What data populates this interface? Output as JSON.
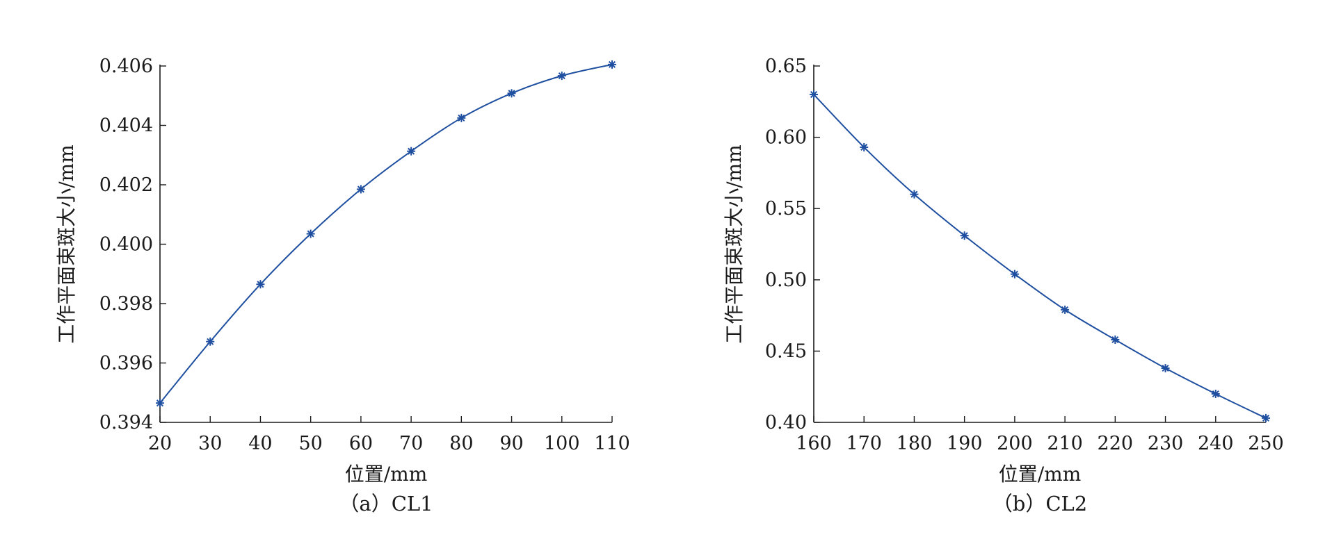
{
  "colors": {
    "series": "#1f4fa0",
    "axis": "#1a1a1a",
    "text": "#1a1a1a"
  },
  "chart_data": [
    {
      "type": "line",
      "caption": "（a）CL1",
      "xlabel": "位置/mm",
      "ylabel": "工作平面束斑大小/mm",
      "xlim": [
        20,
        110
      ],
      "ylim": [
        0.394,
        0.406
      ],
      "xticks": [
        "20",
        "30",
        "40",
        "50",
        "60",
        "70",
        "80",
        "90",
        "100",
        "110"
      ],
      "yticks": [
        "0.394",
        "0.396",
        "0.398",
        "0.400",
        "0.402",
        "0.404",
        "0.406"
      ],
      "marker": "asterisk",
      "x": [
        20,
        30,
        40,
        50,
        60,
        70,
        80,
        90,
        100,
        110
      ],
      "y": [
        0.39465,
        0.39672,
        0.39865,
        0.40035,
        0.40185,
        0.40313,
        0.40425,
        0.40508,
        0.40567,
        0.40605
      ]
    },
    {
      "type": "line",
      "caption": "（b）CL2",
      "xlabel": "位置/mm",
      "ylabel": "工作平面束斑大小/mm",
      "xlim": [
        160,
        250
      ],
      "ylim": [
        0.4,
        0.65
      ],
      "xticks": [
        "160",
        "170",
        "180",
        "190",
        "200",
        "210",
        "220",
        "230",
        "240",
        "250"
      ],
      "yticks": [
        "0.40",
        "0.45",
        "0.50",
        "0.55",
        "0.60",
        "0.65"
      ],
      "marker": "asterisk",
      "x": [
        160,
        170,
        180,
        190,
        200,
        210,
        220,
        230,
        240,
        250
      ],
      "y": [
        0.63,
        0.593,
        0.56,
        0.531,
        0.504,
        0.479,
        0.458,
        0.438,
        0.42,
        0.403
      ]
    }
  ]
}
